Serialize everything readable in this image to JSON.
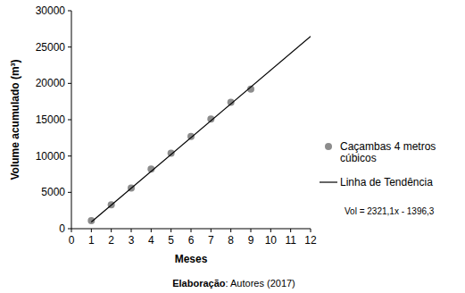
{
  "chart_data": {
    "type": "scatter",
    "y_label": "Volume acumulado (m³)",
    "x_label": "Meses",
    "xlim": [
      0,
      12
    ],
    "xticks": [
      0,
      1,
      2,
      3,
      4,
      5,
      6,
      7,
      8,
      9,
      10,
      11,
      12
    ],
    "ylim": [
      0,
      30000
    ],
    "yticks": [
      0,
      5000,
      10000,
      15000,
      20000,
      25000,
      30000
    ],
    "grid": false,
    "legend": "right",
    "series": [
      {
        "name": "Caçambas 4 metros cúbicos",
        "type": "scatter",
        "marker": "circle",
        "color": "#8c8c8c",
        "x": [
          1,
          2,
          3,
          4,
          5,
          6,
          7,
          8,
          9
        ],
        "values": [
          1100,
          3300,
          5600,
          8200,
          10400,
          12700,
          15100,
          17400,
          19200
        ]
      },
      {
        "name": "Linha de Tendência",
        "type": "line",
        "line_style": "solid",
        "color": "#000000",
        "x": [
          1,
          12
        ],
        "values": [
          925,
          26457
        ]
      }
    ],
    "annotations": [
      "Vol = 2321,1x - 1396,3"
    ],
    "caption": [
      "Elaboração",
      ": Autores (2017)"
    ]
  }
}
